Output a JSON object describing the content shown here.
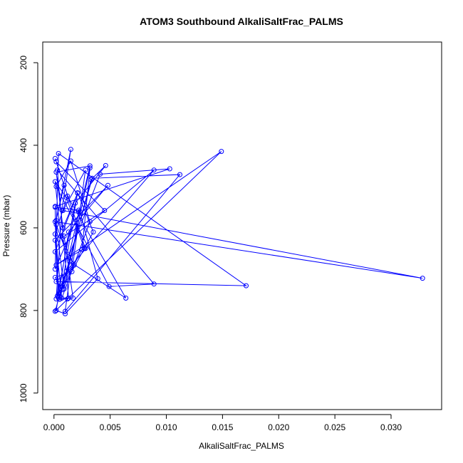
{
  "chart_data": {
    "type": "line",
    "title": "ATOM3 Southbound AlkaliSaltFrac_PALMS",
    "xlabel": "AlkaliSaltFrac_PALMS",
    "ylabel": "Pressure (mbar)",
    "xlim": [
      -0.001,
      0.0345
    ],
    "ylim": [
      1040,
      150
    ],
    "y_reversed": true,
    "x_ticks": [
      "0.000",
      "0.005",
      "0.010",
      "0.015",
      "0.020",
      "0.025",
      "0.030"
    ],
    "y_ticks": [
      "200",
      "400",
      "600",
      "800",
      "1000"
    ],
    "grid": false,
    "legend": "none",
    "color": "#0000ff",
    "marker": "open-circle",
    "x": [
      0.0001,
      0.0009,
      0.0002,
      0.0015,
      0.0007,
      0.0002,
      0.0011,
      0.0089,
      0.0001,
      0.0021,
      0.0008,
      0.0002,
      0.0032,
      0.0013,
      0.0041,
      0.0103,
      0.0001,
      0.0003,
      0.0019,
      0.0046,
      0.0033,
      0.0005,
      0.0012,
      0.0149,
      0.0002,
      0.0027,
      0.0011,
      0.0001,
      0.0006,
      0.0018,
      0.0002,
      0.0171,
      0.0004,
      0.0001,
      0.0023,
      0.0039,
      0.001,
      0.0002,
      0.0013,
      0.0048,
      0.0001,
      0.0005,
      0.0021,
      0.0035,
      0.0007,
      0.0001,
      0.0016,
      0.0028,
      0.0008,
      0.0328,
      0.0001,
      0.0004,
      0.0025,
      0.0032,
      0.0009,
      0.0002,
      0.0014,
      0.0064,
      0.0012,
      0.0001,
      0.0007,
      0.0032,
      0.0015,
      0.0002,
      0.0049,
      0.0089,
      0.0003,
      0.0013,
      0.0001,
      0.0034,
      0.0112,
      0.001,
      0.0022,
      0.0001,
      0.0004,
      0.0017,
      0.0009,
      0.0045,
      0.0002,
      0.0028
    ],
    "y": [
      432,
      497,
      582,
      410,
      557,
      772,
      705,
      460,
      658,
      516,
      600,
      465,
      450,
      670,
      470,
      457,
      548,
      765,
      540,
      449,
      483,
      773,
      772,
      415,
      690,
      650,
      526,
      488,
      620,
      690,
      730,
      740,
      420,
      700,
      560,
      723,
      808,
      800,
      610,
      497,
      630,
      773,
      515,
      610,
      750,
      720,
      706,
      460,
      558,
      722,
      585,
      760,
      652,
      455,
      748,
      592,
      682,
      770,
      523,
      615,
      770,
      585,
      438,
      500,
      742,
      736,
      460,
      770,
      802,
      480,
      471,
      802,
      557,
      550,
      770,
      770,
      620,
      558,
      440,
      650
    ]
  }
}
